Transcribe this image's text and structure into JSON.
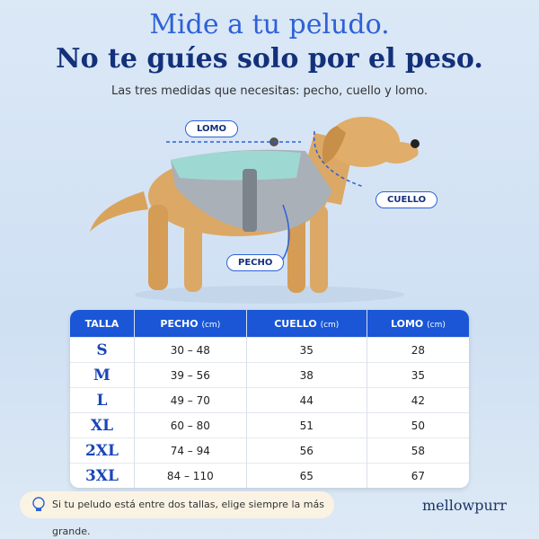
{
  "header": {
    "title_line1": "Mide a tu peludo.",
    "title_line2": "No te guíes solo por el peso.",
    "subtitle": "Las tres medidas que necesitas: pecho, cuello y lomo."
  },
  "measure_labels": {
    "back": "LOMO",
    "neck": "CUELLO",
    "chest": "PECHO"
  },
  "table": {
    "headers": [
      {
        "label": "TALLA"
      },
      {
        "label": "PECHO",
        "unit": "(cm)"
      },
      {
        "label": "CUELLO",
        "unit": "(cm)"
      },
      {
        "label": "LOMO",
        "unit": "(cm)"
      }
    ],
    "rows": [
      [
        "S",
        "30 – 48",
        "35",
        "28"
      ],
      [
        "M",
        "39 – 56",
        "38",
        "35"
      ],
      [
        "L",
        "49 – 70",
        "44",
        "42"
      ],
      [
        "XL",
        "60 – 80",
        "51",
        "50"
      ],
      [
        "2XL",
        "74 – 94",
        "56",
        "58"
      ],
      [
        "3XL",
        "84 – 110",
        "65",
        "67"
      ]
    ]
  },
  "tip": "Si tu peludo está entre dos tallas, elige siempre la más grande.",
  "brand": "mellowpurr"
}
